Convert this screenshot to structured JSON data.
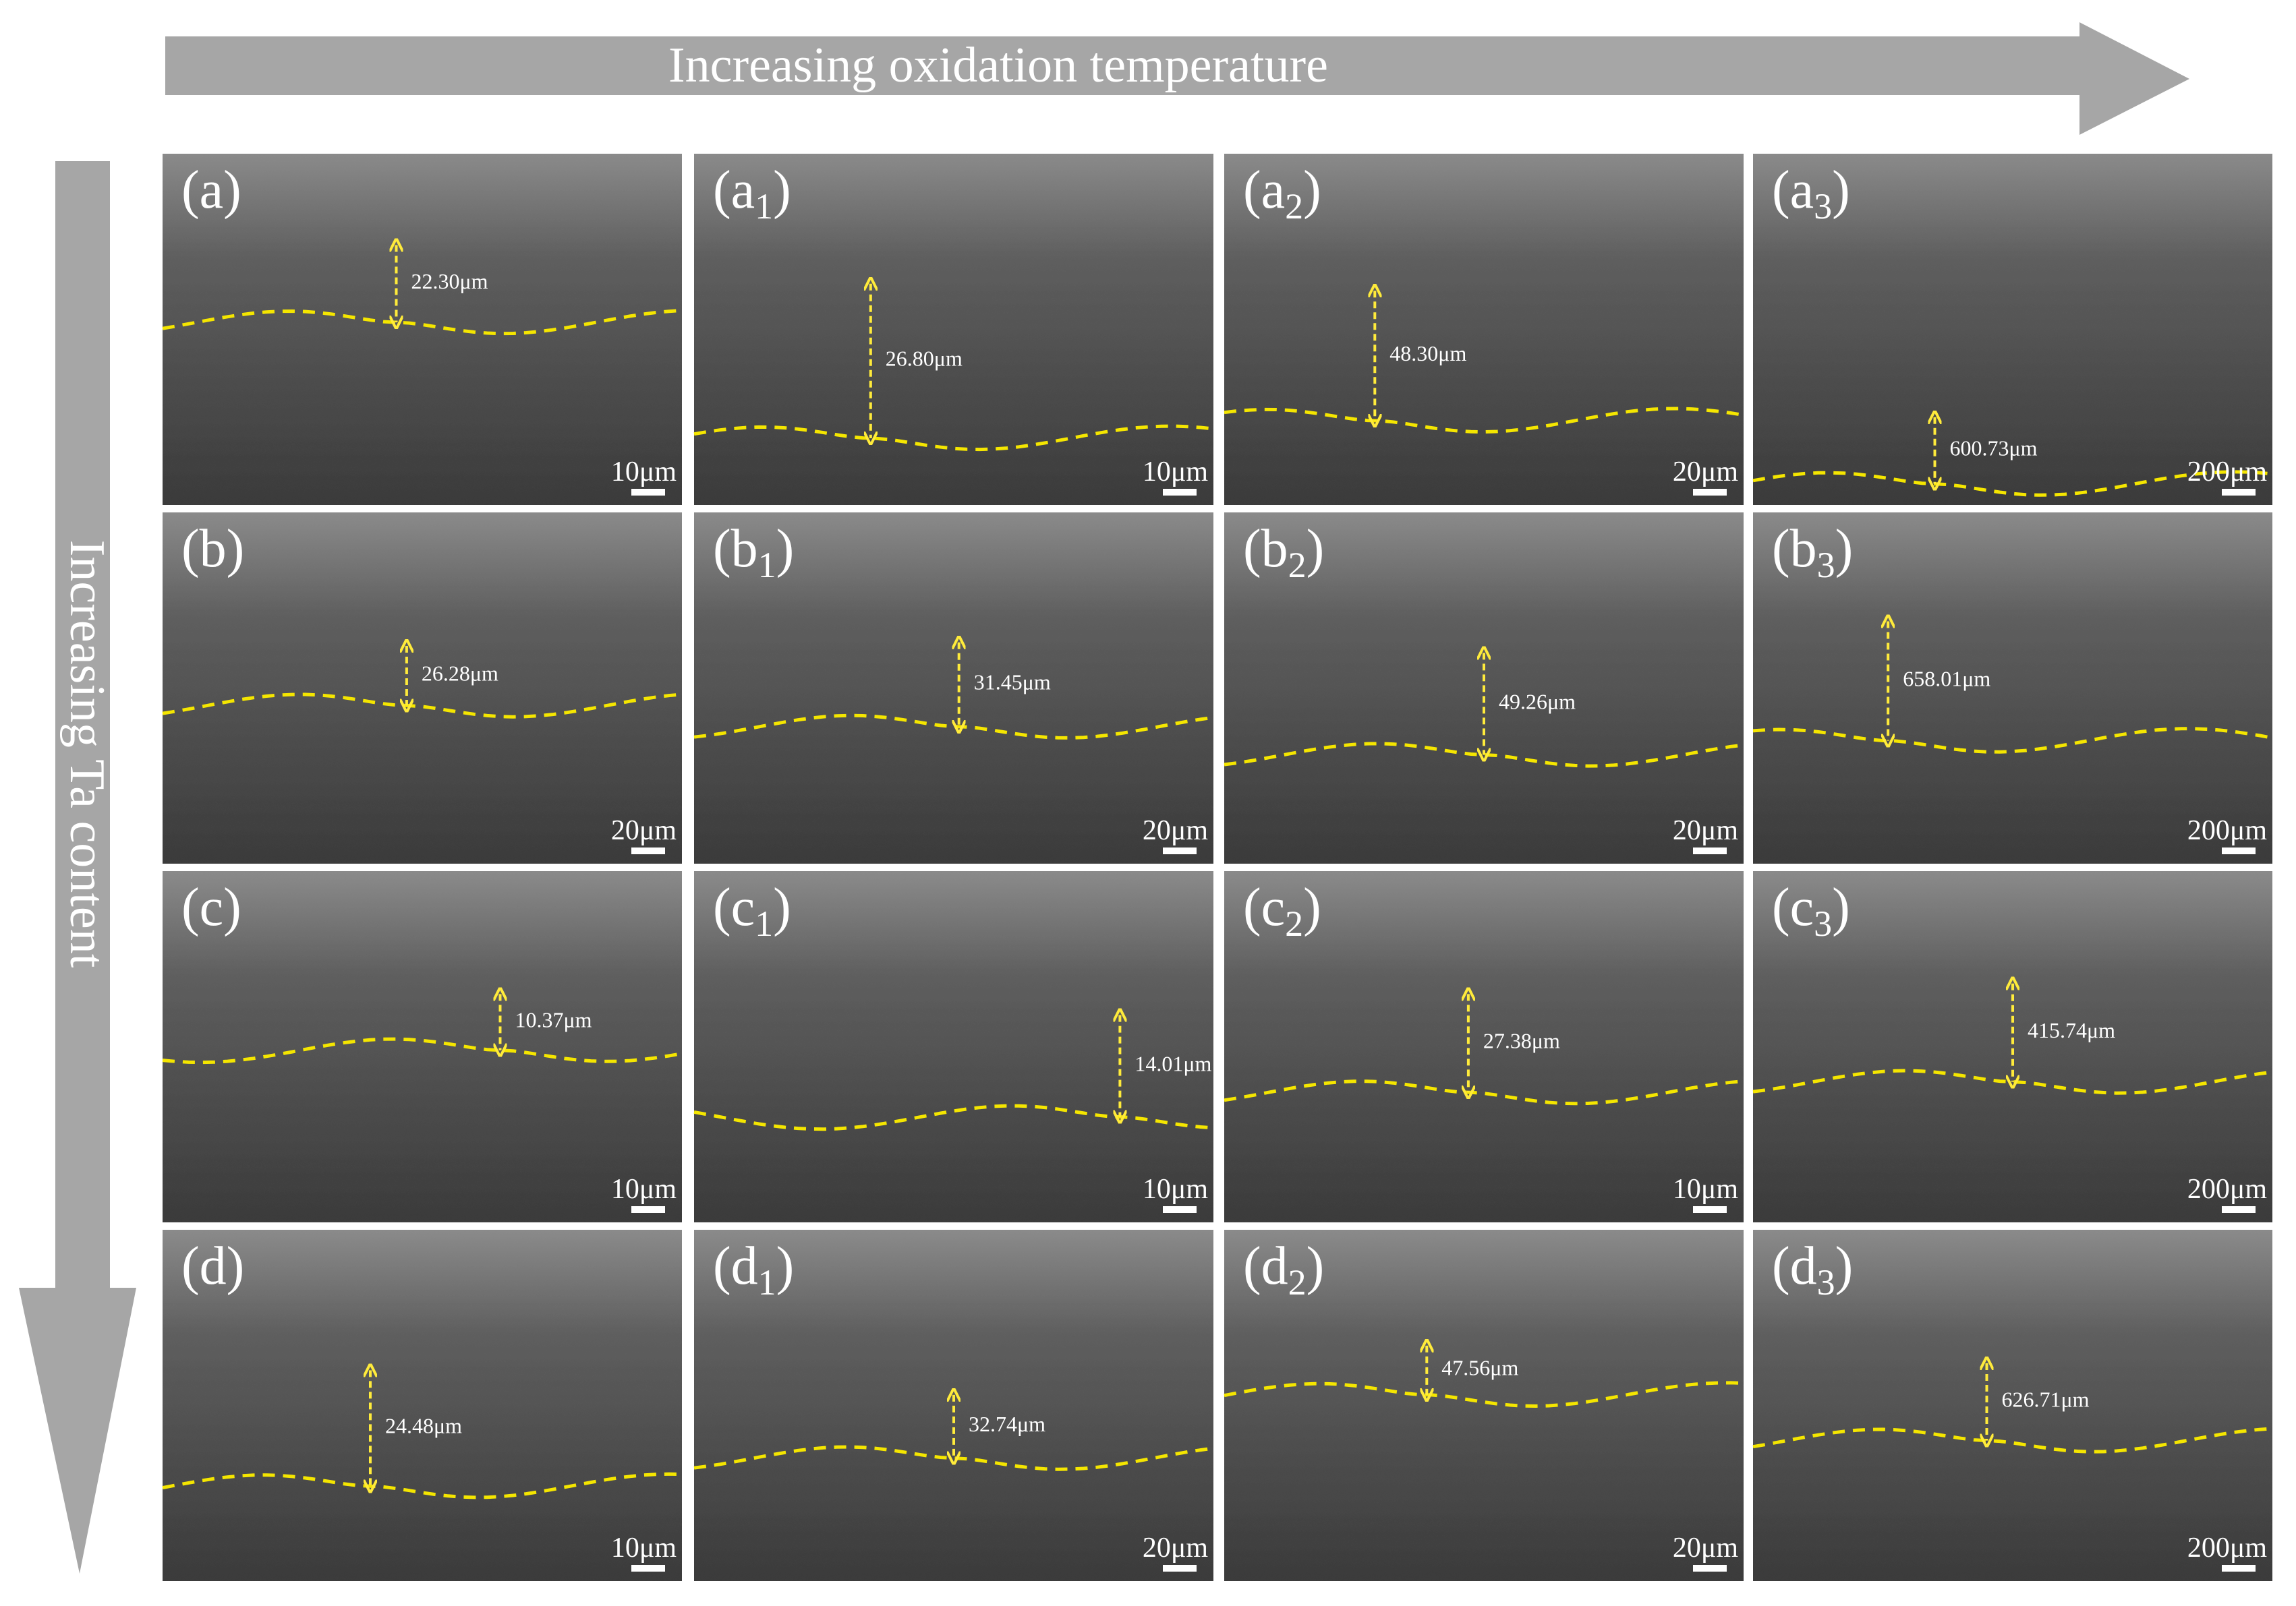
{
  "header": {
    "top_arrow": "Increasing oxidation temperature",
    "left_arrow": "Increasing Ta content"
  },
  "panels": [
    [
      {
        "label": "(a)",
        "thickness": "22.30μm",
        "scale": "10μm"
      },
      {
        "label_open": "(a",
        "sub": "1",
        "label_close": ")",
        "thickness": "26.80μm",
        "scale": "10μm"
      },
      {
        "label_open": "(a",
        "sub": "2",
        "label_close": ")",
        "thickness": "48.30μm",
        "scale": "20μm"
      },
      {
        "label_open": "(a",
        "sub": "3",
        "label_close": ")",
        "thickness": "600.73μm",
        "scale": "200μm"
      }
    ],
    [
      {
        "label": "(b)",
        "thickness": "26.28μm",
        "scale": "20μm"
      },
      {
        "label_open": "(b",
        "sub": "1",
        "label_close": ")",
        "thickness": "31.45μm",
        "scale": "20μm"
      },
      {
        "label_open": "(b",
        "sub": "2",
        "label_close": ")",
        "thickness": "49.26μm",
        "scale": "20μm"
      },
      {
        "label_open": "(b",
        "sub": "3",
        "label_close": ")",
        "thickness": "658.01μm",
        "scale": "200μm"
      }
    ],
    [
      {
        "label": "(c)",
        "thickness": "10.37μm",
        "scale": "10μm"
      },
      {
        "label_open": "(c",
        "sub": "1",
        "label_close": ")",
        "thickness": "14.01μm",
        "scale": "10μm"
      },
      {
        "label_open": "(c",
        "sub": "2",
        "label_close": ")",
        "thickness": "27.38μm",
        "scale": "10μm"
      },
      {
        "label_open": "(c",
        "sub": "3",
        "label_close": ")",
        "thickness": "415.74μm",
        "scale": "200μm"
      }
    ],
    [
      {
        "label": "(d)",
        "thickness": "24.48μm",
        "scale": "10μm"
      },
      {
        "label_open": "(d",
        "sub": "1",
        "label_close": ")",
        "thickness": "32.74μm",
        "scale": "20μm"
      },
      {
        "label_open": "(d",
        "sub": "2",
        "label_close": ")",
        "thickness": "47.56μm",
        "scale": "20μm"
      },
      {
        "label_open": "(d",
        "sub": "3",
        "label_close": ")",
        "thickness": "626.71μm",
        "scale": "200μm"
      }
    ]
  ]
}
